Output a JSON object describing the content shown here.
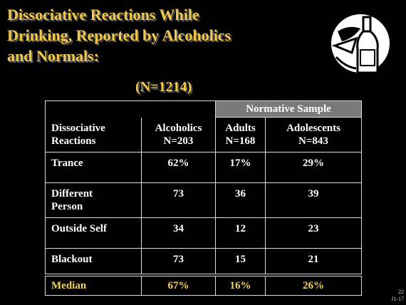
{
  "title": "Dissociative Reactions While\nDrinking, Reported by Alcoholics\nand Normals:",
  "subtitle": "(N=1214)",
  "table": {
    "group_header": "Normative Sample",
    "headers": [
      "Dissociative\nReactions",
      "Alcoholics\nN=203",
      "Adults\nN=168",
      "Adolescents\nN=843"
    ],
    "rows": [
      [
        "Trance",
        "62%",
        "17%",
        "29%"
      ],
      [
        "Different\nPerson",
        "73",
        "36",
        "39"
      ],
      [
        "Outside Self",
        "34",
        "12",
        "23"
      ],
      [
        "Blackout",
        "73",
        "15",
        "21"
      ]
    ],
    "summary": [
      "Median",
      "67%",
      "16%",
      "26%"
    ]
  },
  "footer": {
    "page": "22",
    "code": "J1-17"
  }
}
